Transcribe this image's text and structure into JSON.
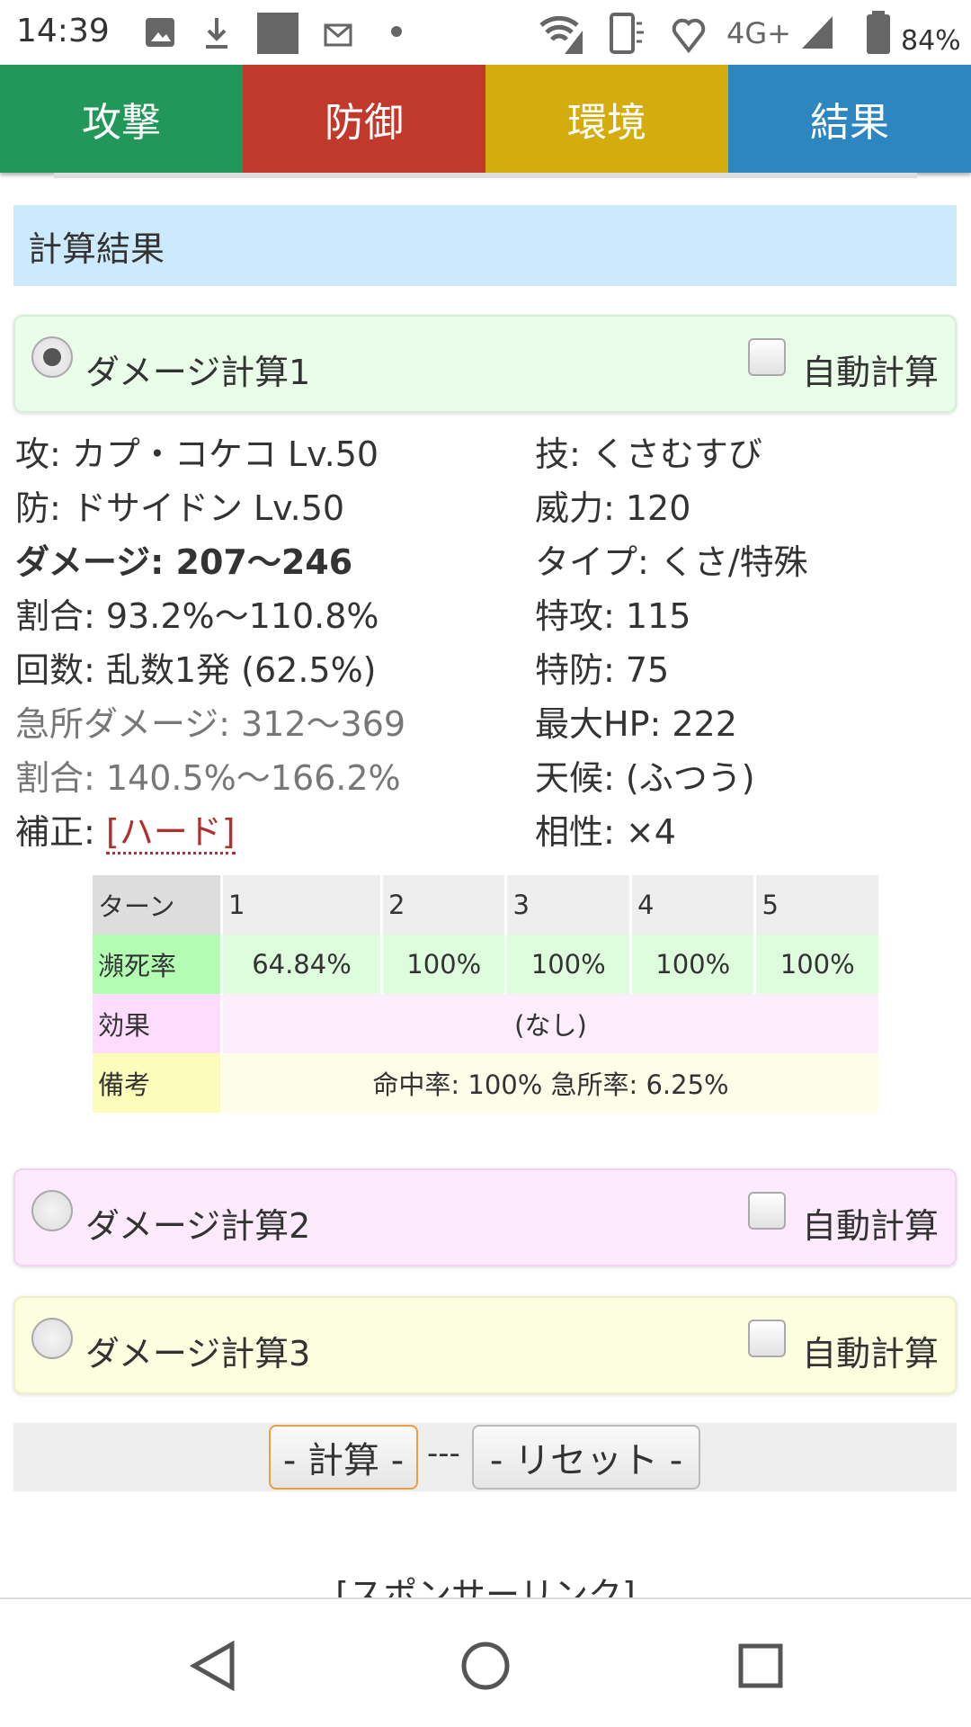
{
  "status_bar": {
    "time": "14:39",
    "network": "4G+",
    "battery": "84%"
  },
  "tabs": [
    {
      "label": "攻撃",
      "color": "#22975a"
    },
    {
      "label": "防御",
      "color": "#c0392b"
    },
    {
      "label": "環境",
      "color": "#d4ac0d"
    },
    {
      "label": "結果",
      "color": "#2e86c1"
    }
  ],
  "header": {
    "title": "計算結果"
  },
  "calcs": [
    {
      "label": "ダメージ計算1",
      "selected": true,
      "auto_label": "自動計算",
      "auto_checked": false,
      "bg": "#e9fde9"
    },
    {
      "label": "ダメージ計算2",
      "selected": false,
      "auto_label": "自動計算",
      "auto_checked": false,
      "bg": "#fdeafd"
    },
    {
      "label": "ダメージ計算3",
      "selected": false,
      "auto_label": "自動計算",
      "auto_checked": false,
      "bg": "#fdfde0"
    }
  ],
  "result": {
    "left": {
      "attacker": "攻: カプ・コケコ Lv.50",
      "defender": "防: ドサイドン Lv.50",
      "damage": "ダメージ: 207〜246",
      "ratio": "割合: 93.2%〜110.8%",
      "hits": "回数: 乱数1発 (62.5%)",
      "crit_damage": "急所ダメージ: 312〜369",
      "crit_ratio": "割合: 140.5%〜166.2%",
      "modifier_label": "補正: ",
      "modifier_value": "[ハード]"
    },
    "right": {
      "move": "技: くさむすび",
      "power": "威力: 120",
      "type": "タイプ: くさ/特殊",
      "spatk": "特攻: 115",
      "spdef": "特防: 75",
      "maxhp": "最大HP: 222",
      "weather": "天候: (ふつう)",
      "effectiveness": "相性: ×4"
    }
  },
  "table": {
    "turn_label": "ターン",
    "turns": [
      "1",
      "2",
      "3",
      "4",
      "5"
    ],
    "ko_label": "瀕死率",
    "ko_rates": [
      "64.84%",
      "100%",
      "100%",
      "100%",
      "100%"
    ],
    "effect_label": "効果",
    "effect": "(なし)",
    "note_label": "備考",
    "note": "命中率: 100% 急所率: 6.25%"
  },
  "buttons": {
    "calc": "- 計算 -",
    "separator": "---",
    "reset": "- リセット -"
  },
  "sponsor": "[スポンサーリンク]"
}
